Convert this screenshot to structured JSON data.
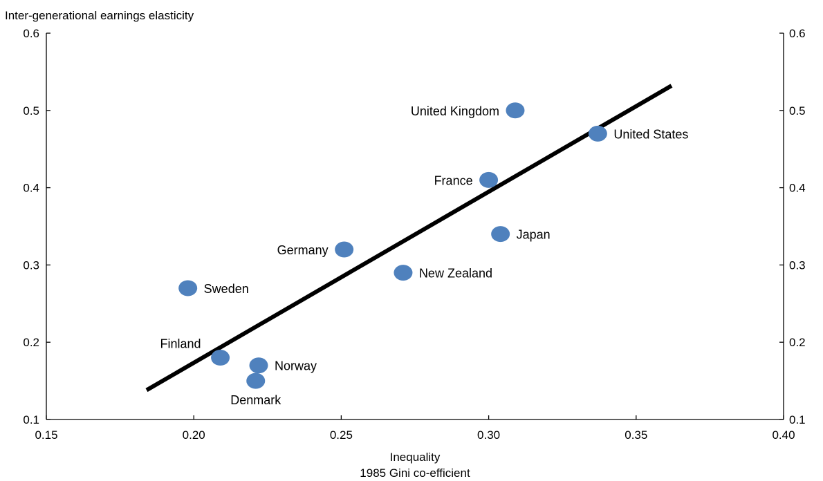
{
  "chart_data": {
    "type": "scatter",
    "title": "",
    "ylabel": "Inter-generational earnings elasticity",
    "xlabel": "Inequality",
    "xlabel_sub": "1985 Gini co-efficient",
    "xlim": [
      0.15,
      0.4
    ],
    "ylim": [
      0.1,
      0.6
    ],
    "x_ticks": [
      "0.15",
      "0.20",
      "0.25",
      "0.30",
      "0.35",
      "0.40"
    ],
    "y_ticks": [
      "0.1",
      "0.2",
      "0.3",
      "0.4",
      "0.5",
      "0.6"
    ],
    "grid": false,
    "point_color": "#4f81bd",
    "trendline_color": "#000000",
    "points": [
      {
        "label": "United Kingdom",
        "x": 0.309,
        "y": 0.5,
        "label_side": "left"
      },
      {
        "label": "United States",
        "x": 0.337,
        "y": 0.47,
        "label_side": "right"
      },
      {
        "label": "France",
        "x": 0.3,
        "y": 0.41,
        "label_side": "left"
      },
      {
        "label": "Japan",
        "x": 0.304,
        "y": 0.34,
        "label_side": "right"
      },
      {
        "label": "Germany",
        "x": 0.251,
        "y": 0.32,
        "label_side": "left"
      },
      {
        "label": "New Zealand",
        "x": 0.271,
        "y": 0.29,
        "label_side": "right"
      },
      {
        "label": "Sweden",
        "x": 0.198,
        "y": 0.27,
        "label_side": "right"
      },
      {
        "label": "Finland",
        "x": 0.209,
        "y": 0.18,
        "label_side": "above-left"
      },
      {
        "label": "Norway",
        "x": 0.222,
        "y": 0.17,
        "label_side": "right"
      },
      {
        "label": "Denmark",
        "x": 0.221,
        "y": 0.15,
        "label_side": "below"
      }
    ],
    "trendline": {
      "x": [
        0.184,
        0.362
      ],
      "y": [
        0.138,
        0.532
      ]
    }
  }
}
